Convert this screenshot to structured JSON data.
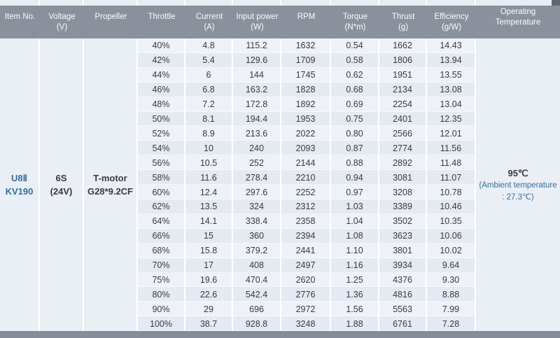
{
  "colors": {
    "header_bg": "#8a919c",
    "header_text": "#fbfcfd",
    "row_light": "#eef2f8",
    "row_dark": "#e4eaf2",
    "merged_cell_bg": "#eaeff5",
    "accent_blue": "#336fa7",
    "text_dark": "#3a3a3a",
    "bottom_bar": "#868d98",
    "top_right_square": "#5e6671"
  },
  "chart_data": {
    "type": "table",
    "columns": [
      {
        "label": "Item No.",
        "sub": ""
      },
      {
        "label": "Voltage",
        "sub": "(V)"
      },
      {
        "label": "Propeller",
        "sub": ""
      },
      {
        "label": "Throttle",
        "sub": ""
      },
      {
        "label": "Current",
        "sub": "(A)"
      },
      {
        "label": "Input power",
        "sub": "(W)"
      },
      {
        "label": "RPM",
        "sub": ""
      },
      {
        "label": "Torque",
        "sub": "(N*m)"
      },
      {
        "label": "Thrust",
        "sub": "(g)"
      },
      {
        "label": "Efficiency",
        "sub": "(g/W)"
      },
      {
        "label": "Operating Temperature",
        "sub": ""
      }
    ],
    "merged": {
      "item_no_line1": "U8Ⅱ",
      "item_no_line2": "KV190",
      "voltage_line1": "6S",
      "voltage_line2": "(24V)",
      "propeller_line1": "T-motor",
      "propeller_line2": "G28*9.2CF",
      "temp_value": "95℃",
      "temp_ambient_line1": "(Ambient temperature",
      "temp_ambient_line2": ": 27.3℃)"
    },
    "rows": [
      [
        "40%",
        "4.8",
        "115.2",
        "1632",
        "0.54",
        "1662",
        "14.43"
      ],
      [
        "42%",
        "5.4",
        "129.6",
        "1709",
        "0.58",
        "1806",
        "13.94"
      ],
      [
        "44%",
        "6",
        "144",
        "1745",
        "0.62",
        "1951",
        "13.55"
      ],
      [
        "46%",
        "6.8",
        "163.2",
        "1828",
        "0.68",
        "2134",
        "13.08"
      ],
      [
        "48%",
        "7.2",
        "172.8",
        "1892",
        "0.69",
        "2254",
        "13.04"
      ],
      [
        "50%",
        "8.1",
        "194.4",
        "1953",
        "0.75",
        "2401",
        "12.35"
      ],
      [
        "52%",
        "8.9",
        "213.6",
        "2022",
        "0.80",
        "2566",
        "12.01"
      ],
      [
        "54%",
        "10",
        "240",
        "2093",
        "0.87",
        "2774",
        "11.56"
      ],
      [
        "56%",
        "10.5",
        "252",
        "2144",
        "0.88",
        "2892",
        "11.48"
      ],
      [
        "58%",
        "11.6",
        "278.4",
        "2210",
        "0.94",
        "3081",
        "11.07"
      ],
      [
        "60%",
        "12.4",
        "297.6",
        "2252",
        "0.97",
        "3208",
        "10.78"
      ],
      [
        "62%",
        "13.5",
        "324",
        "2312",
        "1.03",
        "3389",
        "10.46"
      ],
      [
        "64%",
        "14.1",
        "338.4",
        "2358",
        "1.04",
        "3502",
        "10.35"
      ],
      [
        "66%",
        "15",
        "360",
        "2394",
        "1.08",
        "3623",
        "10.06"
      ],
      [
        "68%",
        "15.8",
        "379.2",
        "2441",
        "1.10",
        "3801",
        "10.02"
      ],
      [
        "70%",
        "17",
        "408",
        "2497",
        "1.16",
        "3934",
        "9.64"
      ],
      [
        "75%",
        "19.6",
        "470.4",
        "2620",
        "1.25",
        "4376",
        "9.30"
      ],
      [
        "80%",
        "22.6",
        "542.4",
        "2776",
        "1.36",
        "4816",
        "8.88"
      ],
      [
        "90%",
        "29",
        "696",
        "2972",
        "1.56",
        "5563",
        "7.99"
      ],
      [
        "100%",
        "38.7",
        "928.8",
        "3248",
        "1.88",
        "6761",
        "7.28"
      ]
    ]
  }
}
